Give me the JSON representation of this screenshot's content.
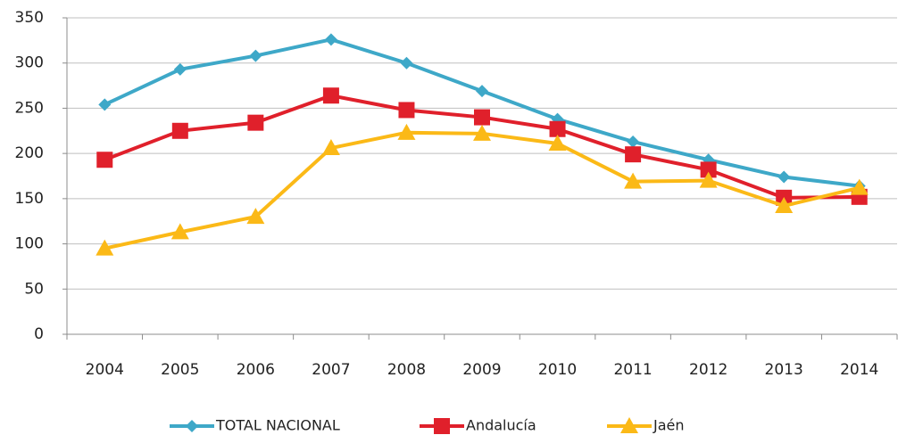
{
  "chart_data": {
    "type": "line",
    "categories": [
      "2004",
      "2005",
      "2006",
      "2007",
      "2008",
      "2009",
      "2010",
      "2011",
      "2012",
      "2013",
      "2014"
    ],
    "series": [
      {
        "name": "TOTAL NACIONAL",
        "color": "#3ea8c8",
        "marker": "diamond",
        "values": [
          254,
          293,
          308,
          326,
          300,
          269,
          238,
          213,
          193,
          174,
          164
        ]
      },
      {
        "name": "Andalucía",
        "color": "#e0202b",
        "marker": "square",
        "values": [
          193,
          225,
          234,
          264,
          248,
          240,
          227,
          199,
          182,
          151,
          152
        ]
      },
      {
        "name": "Jaén",
        "color": "#fbb917",
        "marker": "triangle",
        "values": [
          95,
          113,
          130,
          206,
          223,
          222,
          211,
          169,
          170,
          142,
          162
        ]
      }
    ],
    "ylim": [
      0,
      350
    ],
    "yticks": [
      0,
      50,
      100,
      150,
      200,
      250,
      300,
      350
    ],
    "grid": true,
    "legend": "bottom"
  }
}
